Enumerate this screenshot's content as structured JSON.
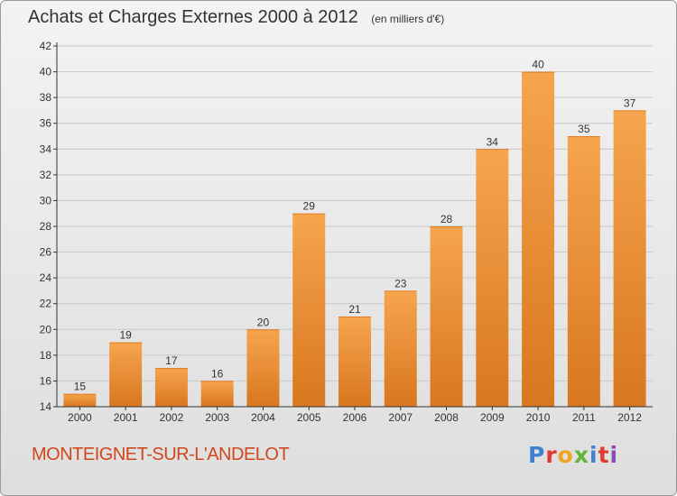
{
  "header": {
    "title": "Achats et Charges Externes 2000 à 2012",
    "subtitle": "(en milliers d'€)"
  },
  "footer": {
    "place_name": "MONTEIGNET-SUR-L'ANDELOT",
    "brand_logo_text": "Proxiti",
    "brand_logo_colors": [
      "#3f82d2",
      "#e13a2e",
      "#f2a31f",
      "#63b33a",
      "#3f82d2",
      "#e13a2e",
      "#8a4bb8"
    ]
  },
  "colors": {
    "bar_fill_top": "#f6a54e",
    "bar_fill_bottom": "#d8771f",
    "axis": "#333333",
    "grid": "#c8c8c8",
    "text": "#333333",
    "place_name": "#d2461e"
  },
  "chart_data": {
    "type": "bar",
    "title": "Achats et Charges Externes 2000 à 2012",
    "subtitle": "(en milliers d'€)",
    "categories": [
      "2000",
      "2001",
      "2002",
      "2003",
      "2004",
      "2005",
      "2006",
      "2007",
      "2008",
      "2009",
      "2010",
      "2011",
      "2012"
    ],
    "values": [
      15,
      19,
      17,
      16,
      20,
      29,
      21,
      23,
      28,
      34,
      40,
      35,
      37
    ],
    "ylim": [
      14,
      42
    ],
    "yticks": [
      14,
      16,
      18,
      20,
      22,
      24,
      26,
      28,
      30,
      32,
      34,
      36,
      38,
      40,
      42
    ],
    "grid": true,
    "data_labels": true,
    "xlabel": "",
    "ylabel": ""
  }
}
